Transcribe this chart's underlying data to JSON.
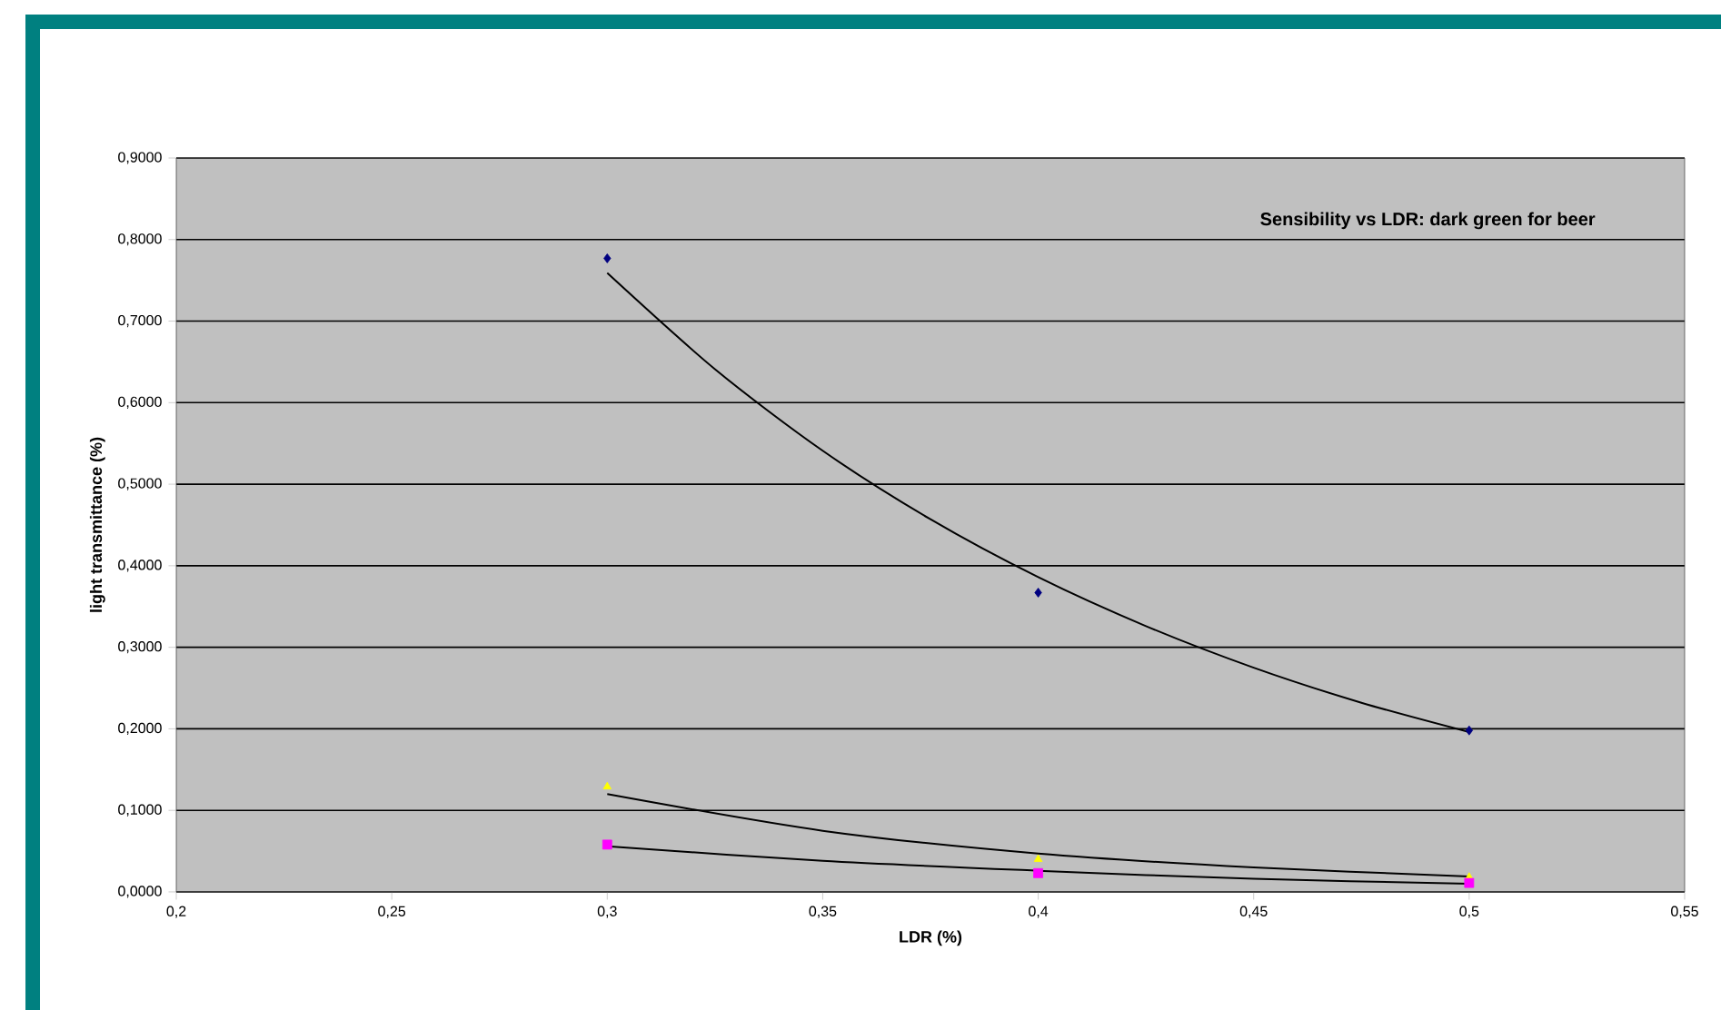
{
  "chart_data": {
    "type": "scatter",
    "title": "Sensibility vs LDR: dark green for beer",
    "xlabel": "LDR (%)",
    "ylabel": "light transmittance (%)",
    "xlim": [
      0.2,
      0.55
    ],
    "ylim": [
      0,
      0.9
    ],
    "xticks": [
      {
        "value": 0.2,
        "label": "0,2"
      },
      {
        "value": 0.25,
        "label": "0,25"
      },
      {
        "value": 0.3,
        "label": "0,3"
      },
      {
        "value": 0.35,
        "label": "0,35"
      },
      {
        "value": 0.4,
        "label": "0,4"
      },
      {
        "value": 0.45,
        "label": "0,45"
      },
      {
        "value": 0.5,
        "label": "0,5"
      },
      {
        "value": 0.55,
        "label": "0,55"
      }
    ],
    "yticks": [
      {
        "value": 0,
        "label": "0,0000"
      },
      {
        "value": 0.1,
        "label": "0,1000"
      },
      {
        "value": 0.2,
        "label": "0,2000"
      },
      {
        "value": 0.3,
        "label": "0,3000"
      },
      {
        "value": 0.4,
        "label": "0,4000"
      },
      {
        "value": 0.5,
        "label": "0,5000"
      },
      {
        "value": 0.6,
        "label": "0,6000"
      },
      {
        "value": 0.7,
        "label": "0,7000"
      },
      {
        "value": 0.8,
        "label": "0,8000"
      },
      {
        "value": 0.9,
        "label": "0,9000"
      }
    ],
    "grid": "y",
    "series": [
      {
        "marker": "diamond",
        "color": "#000080",
        "x": [
          0.3,
          0.4,
          0.5
        ],
        "values": [
          0.777,
          0.367,
          0.198
        ]
      },
      {
        "marker": "triangle",
        "color": "#ffff00",
        "x": [
          0.3,
          0.4,
          0.5
        ],
        "values": [
          0.129,
          0.04,
          0.018
        ]
      },
      {
        "marker": "square",
        "color": "#ff00ff",
        "x": [
          0.3,
          0.4,
          0.5
        ],
        "values": [
          0.058,
          0.023,
          0.011
        ]
      },
      {
        "type": "line",
        "marker": "none",
        "color": "#000000",
        "x": [
          0.3,
          0.325,
          0.35,
          0.375,
          0.4,
          0.425,
          0.45,
          0.475,
          0.5
        ],
        "values": [
          0.759,
          0.641,
          0.541,
          0.457,
          0.386,
          0.326,
          0.275,
          0.232,
          0.196
        ]
      },
      {
        "type": "line",
        "marker": "none",
        "color": "#000000",
        "x": [
          0.3,
          0.35,
          0.4,
          0.45,
          0.5
        ],
        "values": [
          0.12,
          0.075,
          0.047,
          0.03,
          0.019
        ]
      },
      {
        "type": "line",
        "marker": "none",
        "color": "#000000",
        "x": [
          0.3,
          0.35,
          0.4,
          0.45,
          0.5
        ],
        "values": [
          0.056,
          0.038,
          0.026,
          0.016,
          0.01
        ]
      }
    ]
  }
}
